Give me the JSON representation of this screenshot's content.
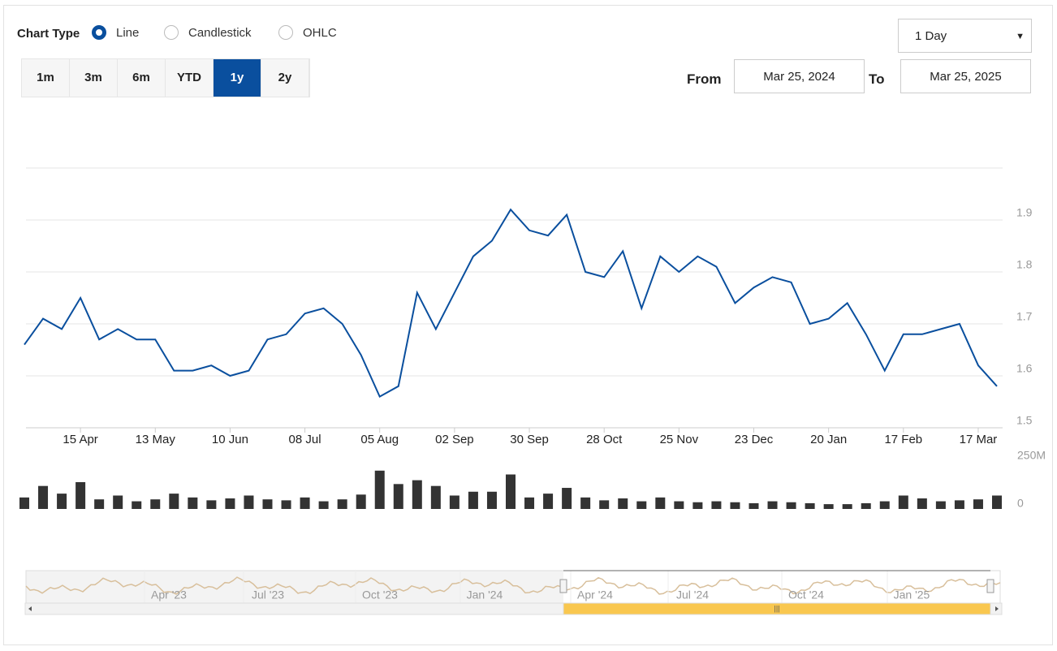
{
  "controls": {
    "chart_type_label": "Chart Type",
    "chart_types": [
      "Line",
      "Candlestick",
      "OHLC"
    ],
    "selected_type": 0,
    "ranges": [
      "1m",
      "3m",
      "6m",
      "YTD",
      "1y",
      "2y"
    ],
    "selected_range": 4,
    "interval": "1 Day",
    "from_label": "From",
    "from": "Mar 25, 2024",
    "to_label": "To",
    "to": "Mar 25, 2025"
  },
  "chart_data": [
    {
      "type": "line",
      "color": "#0a4f9e",
      "categories": [
        null,
        null,
        null,
        "15 Apr",
        null,
        null,
        null,
        "13 May",
        null,
        null,
        null,
        "10 Jun",
        null,
        null,
        null,
        "08 Jul",
        null,
        null,
        null,
        "05 Aug",
        null,
        null,
        null,
        "02 Sep",
        null,
        null,
        null,
        "30 Sep",
        null,
        null,
        null,
        "28 Oct",
        null,
        null,
        null,
        "25 Nov",
        null,
        null,
        null,
        "23 Dec",
        null,
        null,
        null,
        "20 Jan",
        null,
        null,
        null,
        "17 Feb",
        null,
        null,
        null,
        "17 Mar",
        null
      ],
      "values": [
        1.66,
        1.71,
        1.69,
        1.75,
        1.67,
        1.69,
        1.67,
        1.67,
        1.61,
        1.61,
        1.62,
        1.6,
        1.61,
        1.67,
        1.68,
        1.72,
        1.73,
        1.7,
        1.64,
        1.56,
        1.58,
        1.76,
        1.69,
        1.76,
        1.83,
        1.86,
        1.92,
        1.88,
        1.87,
        1.91,
        1.8,
        1.79,
        1.84,
        1.73,
        1.83,
        1.8,
        1.83,
        1.81,
        1.74,
        1.77,
        1.79,
        1.78,
        1.7,
        1.71,
        1.74,
        1.68,
        1.61,
        1.68,
        1.68,
        1.69,
        1.7,
        1.62,
        1.58
      ],
      "ylim": [
        1.5,
        2.0
      ],
      "yticks": [
        1.5,
        1.6,
        1.7,
        1.8,
        1.9
      ],
      "grid": true
    },
    {
      "type": "bar",
      "color": "#333333",
      "values": [
        60000000,
        120000000,
        80000000,
        140000000,
        50000000,
        70000000,
        40000000,
        50000000,
        80000000,
        60000000,
        45000000,
        55000000,
        70000000,
        50000000,
        45000000,
        60000000,
        40000000,
        50000000,
        75000000,
        200000000,
        130000000,
        150000000,
        120000000,
        70000000,
        90000000,
        90000000,
        180000000,
        60000000,
        80000000,
        110000000,
        60000000,
        45000000,
        55000000,
        40000000,
        60000000,
        40000000,
        35000000,
        40000000,
        35000000,
        30000000,
        40000000,
        35000000,
        30000000,
        25000000,
        25000000,
        30000000,
        40000000,
        70000000,
        55000000,
        40000000,
        45000000,
        50000000,
        70000000
      ],
      "ylim": [
        0,
        250000000
      ],
      "yticks": [
        0,
        {
          "value": 250000000,
          "label": "250M"
        }
      ]
    }
  ],
  "navigator": {
    "labels": [
      "Apr '23",
      "Jul '23",
      "Oct '23",
      "Jan '24",
      "Apr '24",
      "Jul '24",
      "Oct '24",
      "Jan '25"
    ]
  }
}
